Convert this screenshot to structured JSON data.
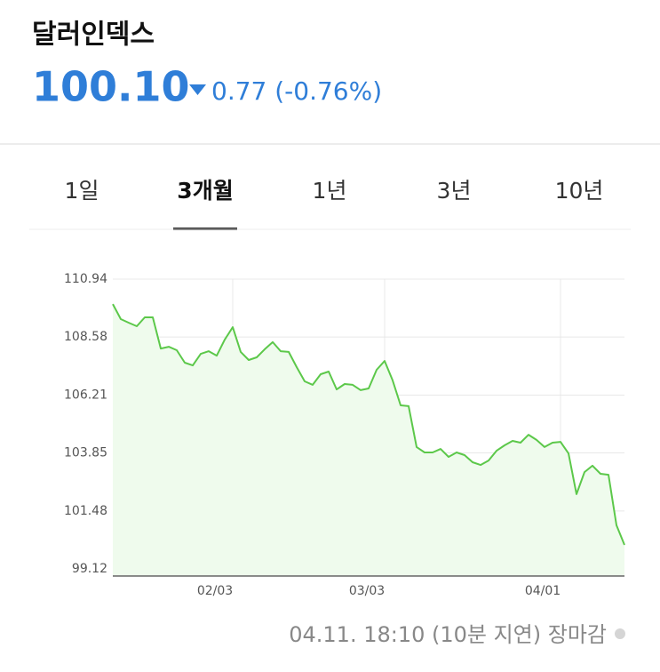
{
  "header": {
    "title": "달러인덱스",
    "price": "100.10",
    "change": "0.77 (-0.76%)"
  },
  "tabs": [
    "1일",
    "3개월",
    "1년",
    "3년",
    "10년"
  ],
  "selected_tab": 1,
  "chart_data": {
    "type": "line",
    "color": "#5cc84a",
    "fill": "#effbed",
    "categories": [
      null,
      null,
      null,
      null,
      null,
      null,
      null,
      null,
      null,
      null,
      null,
      null,
      null,
      null,
      null,
      "02/03",
      null,
      null,
      null,
      null,
      null,
      null,
      null,
      null,
      null,
      null,
      null,
      null,
      null,
      null,
      null,
      null,
      null,
      null,
      "03/03",
      null,
      null,
      null,
      null,
      null,
      null,
      null,
      null,
      null,
      null,
      null,
      null,
      null,
      null,
      null,
      null,
      null,
      null,
      null,
      null,
      null,
      "04/01",
      null,
      null,
      null,
      null,
      null,
      null,
      null,
      null
    ],
    "values": [
      109.92,
      109.31,
      109.16,
      109.02,
      109.38,
      109.38,
      108.11,
      108.18,
      108.04,
      107.53,
      107.42,
      107.89,
      108.0,
      107.82,
      108.47,
      108.98,
      107.97,
      107.64,
      107.75,
      108.08,
      108.37,
      108.0,
      107.97,
      107.35,
      106.77,
      106.63,
      107.06,
      107.17,
      106.44,
      106.66,
      106.63,
      106.41,
      106.48,
      107.24,
      107.6,
      106.81,
      105.79,
      105.76,
      104.09,
      103.87,
      103.87,
      104.01,
      103.69,
      103.87,
      103.76,
      103.47,
      103.36,
      103.54,
      103.94,
      104.16,
      104.34,
      104.27,
      104.59,
      104.38,
      104.09,
      104.27,
      104.3,
      103.83,
      102.17,
      103.07,
      103.33,
      103.0,
      102.96,
      100.9,
      100.1
    ],
    "ylim": [
      98.83,
      110.94
    ],
    "yticks": [
      110.94,
      108.58,
      106.21,
      103.85,
      101.48,
      99.12
    ],
    "grid": true
  },
  "footer": {
    "status": "04.11. 18:10 (10분 지연) 장마감"
  }
}
